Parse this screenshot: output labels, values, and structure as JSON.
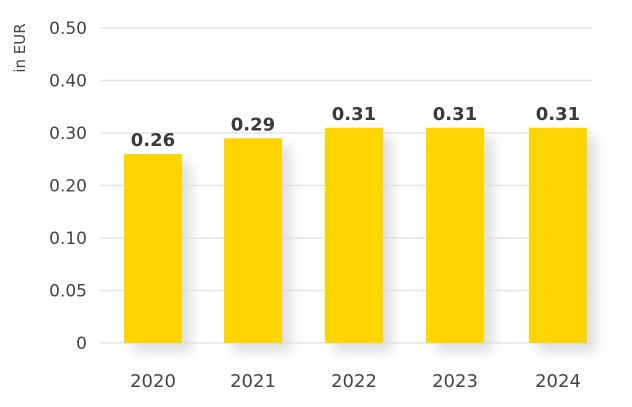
{
  "chart_data": {
    "type": "bar",
    "ylabel": "in EUR",
    "categories": [
      "2020",
      "2021",
      "2022",
      "2023",
      "2024"
    ],
    "values": [
      0.26,
      0.29,
      0.31,
      0.31,
      0.31
    ],
    "data_labels": [
      "0.26",
      "0.29",
      "0.31",
      "0.31",
      "0.31"
    ],
    "y_ticks": [
      0,
      0.05,
      0.1,
      0.2,
      0.3,
      0.4,
      0.5
    ],
    "y_tick_labels": [
      "0",
      "0.05",
      "0.10",
      "0.20",
      "0.30",
      "0.40",
      "0.50"
    ],
    "grid": true,
    "bar_color": "#FFD500",
    "shadow_color": "#d9d9d9"
  }
}
